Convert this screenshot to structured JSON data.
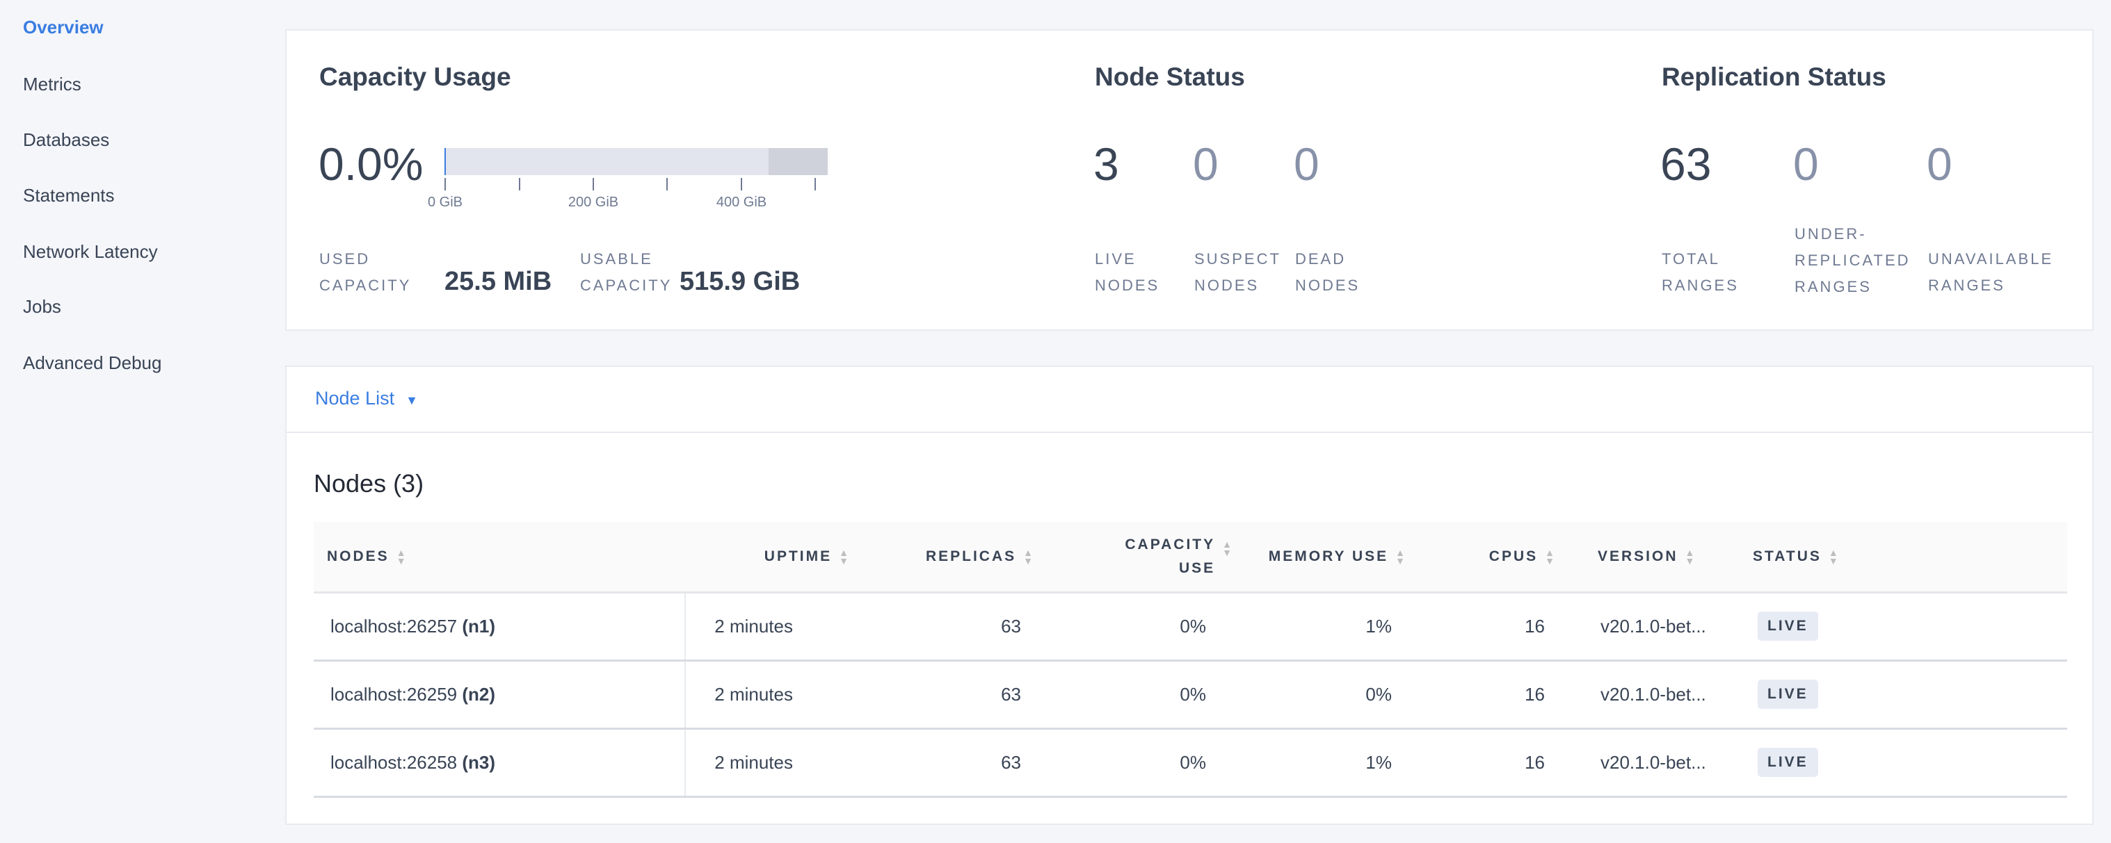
{
  "sidebar": {
    "items": [
      {
        "label": "Overview",
        "active": true
      },
      {
        "label": "Metrics"
      },
      {
        "label": "Databases"
      },
      {
        "label": "Statements"
      },
      {
        "label": "Network Latency"
      },
      {
        "label": "Jobs"
      },
      {
        "label": "Advanced Debug"
      }
    ]
  },
  "capacity": {
    "title": "Capacity Usage",
    "percent": "0.0%",
    "used_fraction": 0.0,
    "bar_ticks": [
      "0 GiB",
      "200 GiB",
      "400 GiB"
    ],
    "used_label_1": "USED",
    "used_label_2": "CAPACITY",
    "used_value": "25.5 MiB",
    "usable_label_1": "USABLE",
    "usable_label_2": "CAPACITY",
    "usable_value": "515.9 GiB"
  },
  "node_status": {
    "title": "Node Status",
    "stats": [
      {
        "value": "3",
        "l1": "LIVE",
        "l2": "NODES"
      },
      {
        "value": "0",
        "l1": "SUSPECT",
        "l2": "NODES"
      },
      {
        "value": "0",
        "l1": "DEAD",
        "l2": "NODES"
      }
    ]
  },
  "replication": {
    "title": "Replication Status",
    "stats": [
      {
        "value": "63",
        "l0": "",
        "l1": "TOTAL",
        "l2": "RANGES"
      },
      {
        "value": "0",
        "l0": "UNDER-",
        "l1": "REPLICATED",
        "l2": "RANGES"
      },
      {
        "value": "0",
        "l0": "",
        "l1": "UNAVAILABLE",
        "l2": "RANGES"
      }
    ]
  },
  "node_list": {
    "dropdown": "Node List",
    "accent": "#3a7de1",
    "heading": "Nodes (3)",
    "columns": [
      "NODES",
      "UPTIME",
      "REPLICAS",
      "CAPACITY",
      "USE",
      "MEMORY USE",
      "CPUS",
      "VERSION",
      "STATUS"
    ],
    "rows": [
      {
        "host": "localhost:26257",
        "id": "(n1)",
        "uptime": "2 minutes",
        "replicas": "63",
        "capacity": "0%",
        "memory": "1%",
        "cpus": "16",
        "version": "v20.1.0-bet...",
        "status": "LIVE"
      },
      {
        "host": "localhost:26259",
        "id": "(n2)",
        "uptime": "2 minutes",
        "replicas": "63",
        "capacity": "0%",
        "memory": "0%",
        "cpus": "16",
        "version": "v20.1.0-bet...",
        "status": "LIVE"
      },
      {
        "host": "localhost:26258",
        "id": "(n3)",
        "uptime": "2 minutes",
        "replicas": "63",
        "capacity": "0%",
        "memory": "1%",
        "cpus": "16",
        "version": "v20.1.0-bet...",
        "status": "LIVE"
      }
    ]
  }
}
